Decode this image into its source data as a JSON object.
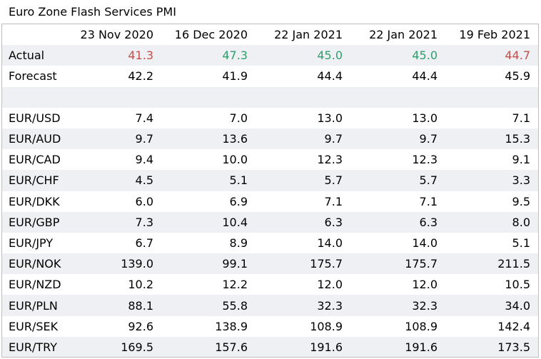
{
  "title": "Euro Zone Flash Services PMI",
  "colors": {
    "red": "#c0504d",
    "green": "#2e9e6a",
    "shade": "#eef0f4"
  },
  "headers": [
    "",
    "23 Nov 2020",
    "16 Dec 2020",
    "22 Jan 2021",
    "22 Jan 2021",
    "19 Feb 2021"
  ],
  "actual": {
    "label": "Actual",
    "values": [
      "41.3",
      "47.3",
      "45.0",
      "45.0",
      "44.7"
    ],
    "colors": [
      "#c0504d",
      "#2e9e6a",
      "#2e9e6a",
      "#2e9e6a",
      "#c0504d"
    ]
  },
  "forecast": {
    "label": "Forecast",
    "values": [
      "42.2",
      "41.9",
      "44.4",
      "44.4",
      "45.9"
    ]
  },
  "pairs": [
    {
      "label": "EUR/USD",
      "values": [
        "7.4",
        "7.0",
        "13.0",
        "13.0",
        "7.1"
      ]
    },
    {
      "label": "EUR/AUD",
      "values": [
        "9.7",
        "13.6",
        "9.7",
        "9.7",
        "15.3"
      ]
    },
    {
      "label": "EUR/CAD",
      "values": [
        "9.4",
        "10.0",
        "12.3",
        "12.3",
        "9.1"
      ]
    },
    {
      "label": "EUR/CHF",
      "values": [
        "4.5",
        "5.1",
        "5.7",
        "5.7",
        "3.3"
      ]
    },
    {
      "label": "EUR/DKK",
      "values": [
        "6.0",
        "6.9",
        "7.1",
        "7.1",
        "9.5"
      ]
    },
    {
      "label": "EUR/GBP",
      "values": [
        "7.3",
        "10.4",
        "6.3",
        "6.3",
        "8.0"
      ]
    },
    {
      "label": "EUR/JPY",
      "values": [
        "6.7",
        "8.9",
        "14.0",
        "14.0",
        "5.1"
      ]
    },
    {
      "label": "EUR/NOK",
      "values": [
        "139.0",
        "99.1",
        "175.7",
        "175.7",
        "211.5"
      ]
    },
    {
      "label": "EUR/NZD",
      "values": [
        "10.2",
        "12.2",
        "12.0",
        "12.0",
        "10.5"
      ]
    },
    {
      "label": "EUR/PLN",
      "values": [
        "88.1",
        "55.8",
        "32.3",
        "32.3",
        "34.0"
      ]
    },
    {
      "label": "EUR/SEK",
      "values": [
        "92.6",
        "138.9",
        "108.9",
        "108.9",
        "142.4"
      ]
    },
    {
      "label": "EUR/TRY",
      "values": [
        "169.5",
        "157.6",
        "191.6",
        "191.6",
        "173.5"
      ]
    }
  ]
}
